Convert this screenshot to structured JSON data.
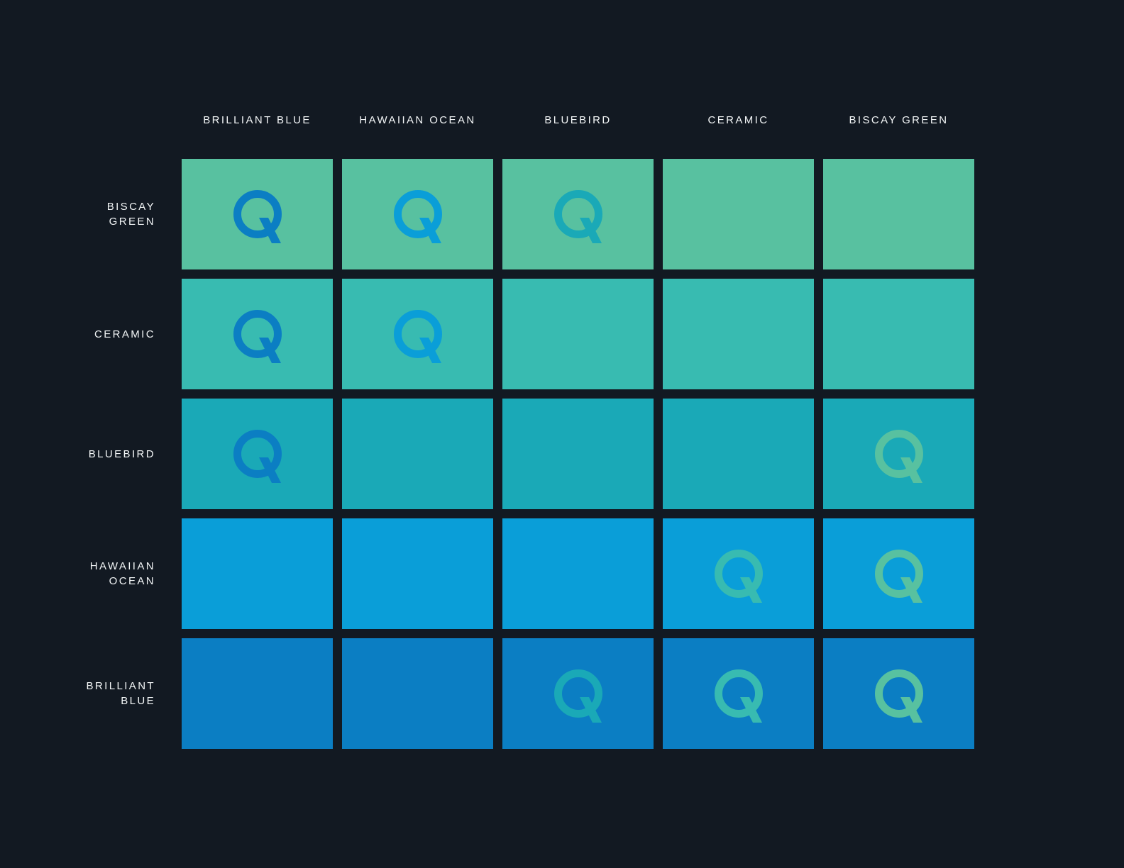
{
  "background_color": "#121922",
  "label_color": "#F3F6F7",
  "icon": {
    "name": "qt-q-logo",
    "meaning": "Q logomark shown where the colour pair is usable"
  },
  "chart_data": {
    "type": "heatmap",
    "title": "",
    "x_axis_labels": [
      "BRILLIANT BLUE",
      "HAWAIIAN OCEAN",
      "BLUEBIRD",
      "CERAMIC",
      "BISCAY GREEN"
    ],
    "y_axis_labels": [
      "BISCAY GREEN",
      "CERAMIC",
      "BLUEBIRD",
      "HAWAIIAN OCEAN",
      "BRILLIANT BLUE"
    ],
    "columns": [
      {
        "label": "BRILLIANT BLUE",
        "color": "#0B7EC3"
      },
      {
        "label": "HAWAIIAN OCEAN",
        "color": "#0A9ED8"
      },
      {
        "label": "BLUEBIRD",
        "color": "#1AA9B7"
      },
      {
        "label": "CERAMIC",
        "color": "#38BBB1"
      },
      {
        "label": "BISCAY GREEN",
        "color": "#58C1A0"
      }
    ],
    "rows": [
      {
        "label": "BISCAY GREEN",
        "label_lines": [
          "BISCAY",
          "GREEN"
        ],
        "color": "#58C1A0",
        "q_marks": [
          1,
          1,
          1,
          0,
          0
        ]
      },
      {
        "label": "CERAMIC",
        "label_lines": [
          "CERAMIC"
        ],
        "color": "#38BBB1",
        "q_marks": [
          1,
          1,
          0,
          0,
          0
        ]
      },
      {
        "label": "BLUEBIRD",
        "label_lines": [
          "BLUEBIRD"
        ],
        "color": "#1AA9B7",
        "q_marks": [
          1,
          0,
          0,
          0,
          1
        ]
      },
      {
        "label": "HAWAIIAN OCEAN",
        "label_lines": [
          "HAWAIIAN",
          "OCEAN"
        ],
        "color": "#0A9ED8",
        "q_marks": [
          0,
          0,
          0,
          1,
          1
        ]
      },
      {
        "label": "BRILLIANT BLUE",
        "label_lines": [
          "BRILLIANT",
          "BLUE"
        ],
        "color": "#0B7EC3",
        "q_marks": [
          0,
          0,
          1,
          1,
          1
        ]
      }
    ],
    "legend": "Cell background = row colour; Q glyph drawn in column colour when pair passes"
  }
}
